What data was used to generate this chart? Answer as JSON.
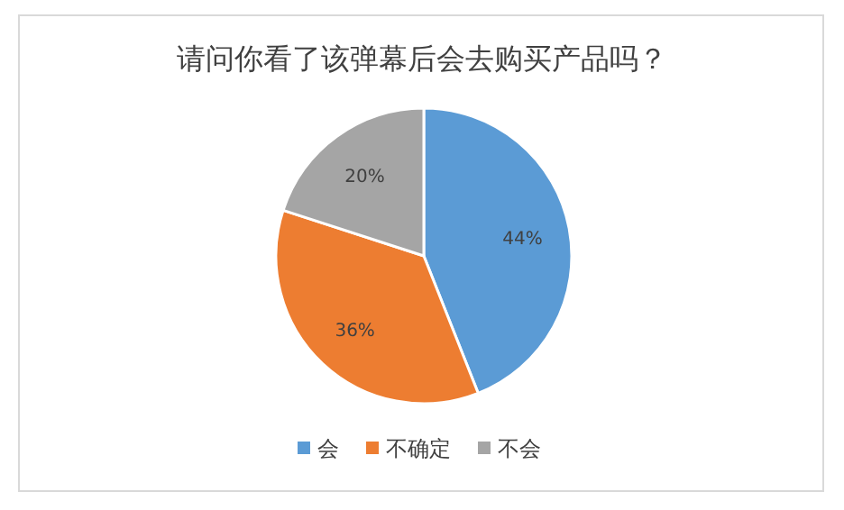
{
  "chart_data": {
    "type": "pie",
    "title": "请问你看了该弹幕后会去购买产品吗？",
    "categories": [
      "会",
      "不确定",
      "不会"
    ],
    "values": [
      44,
      36,
      20
    ],
    "colors": [
      "#5b9bd5",
      "#ed7d31",
      "#a5a5a5"
    ],
    "value_labels": [
      "44%",
      "36%",
      "20%"
    ],
    "legend": "bottom"
  }
}
